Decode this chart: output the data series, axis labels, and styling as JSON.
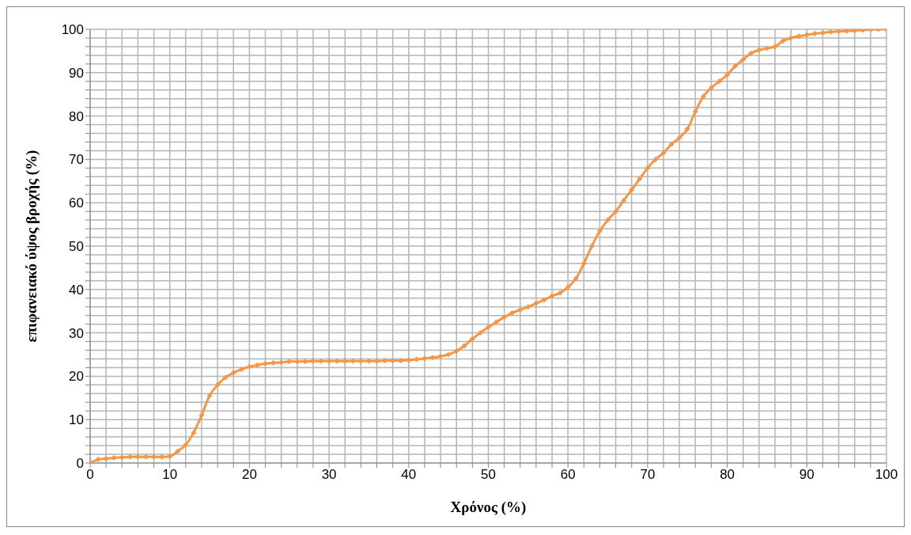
{
  "chart_data": {
    "type": "line",
    "xlabel": "Χρόνος (%)",
    "ylabel": "επιφανειακό ύψος βροχής (%)",
    "x": [
      0,
      1,
      2,
      3,
      4,
      5,
      6,
      7,
      8,
      9,
      10,
      11,
      12,
      13,
      14,
      15,
      16,
      17,
      18,
      19,
      20,
      21,
      22,
      23,
      24,
      25,
      26,
      27,
      28,
      29,
      30,
      31,
      32,
      33,
      34,
      35,
      36,
      37,
      38,
      39,
      40,
      41,
      42,
      43,
      44,
      45,
      46,
      47,
      48,
      49,
      50,
      51,
      52,
      53,
      54,
      55,
      56,
      57,
      58,
      59,
      60,
      61,
      62,
      63,
      64,
      65,
      66,
      67,
      68,
      69,
      70,
      71,
      72,
      73,
      74,
      75,
      76,
      77,
      78,
      79,
      80,
      81,
      82,
      83,
      84,
      85,
      86,
      87,
      88,
      89,
      90,
      91,
      92,
      93,
      94,
      95,
      96,
      97,
      98,
      99,
      100
    ],
    "series": [
      {
        "color": "#f79646",
        "values": [
          0,
          0.8,
          1,
          1.2,
          1.3,
          1.4,
          1.4,
          1.4,
          1.4,
          1.4,
          1.5,
          2.7,
          4.2,
          7,
          11,
          15.5,
          18,
          19.7,
          20.8,
          21.6,
          22.2,
          22.6,
          22.9,
          23.1,
          23.2,
          23.4,
          23.4,
          23.4,
          23.5,
          23.5,
          23.5,
          23.5,
          23.5,
          23.5,
          23.5,
          23.5,
          23.5,
          23.6,
          23.6,
          23.6,
          23.7,
          23.9,
          24.1,
          24.3,
          24.6,
          25,
          25.8,
          27,
          28.6,
          30,
          31.3,
          32.5,
          33.6,
          34.6,
          35.3,
          36,
          36.8,
          37.6,
          38.5,
          39.2,
          40.5,
          42.5,
          46,
          50,
          53.5,
          56,
          58,
          60.5,
          63,
          65.5,
          68,
          70,
          71.5,
          73.5,
          75,
          77,
          81,
          84.5,
          86.5,
          88,
          89.5,
          91.5,
          93,
          94.5,
          95.2,
          95.6,
          96,
          97.3,
          98,
          98.4,
          98.7,
          99,
          99.2,
          99.4,
          99.5,
          99.6,
          99.7,
          99.8,
          99.9,
          100,
          100
        ]
      }
    ],
    "xlim": [
      0,
      100
    ],
    "ylim": [
      0,
      100
    ],
    "xticks": [
      0,
      {
        "value": 2,
        "label": null
      },
      {
        "value": 4,
        "label": null
      },
      {
        "value": 6,
        "label": null
      },
      {
        "value": 8,
        "label": null
      },
      10,
      {
        "value": 12,
        "label": null
      },
      {
        "value": 14,
        "label": null
      },
      {
        "value": 16,
        "label": null
      },
      {
        "value": 18,
        "label": null
      },
      20,
      {
        "value": 22,
        "label": null
      },
      {
        "value": 24,
        "label": null
      },
      {
        "value": 26,
        "label": null
      },
      {
        "value": 28,
        "label": null
      },
      30,
      {
        "value": 32,
        "label": null
      },
      {
        "value": 34,
        "label": null
      },
      {
        "value": 36,
        "label": null
      },
      {
        "value": 38,
        "label": null
      },
      40,
      {
        "value": 42,
        "label": null
      },
      {
        "value": 44,
        "label": null
      },
      {
        "value": 46,
        "label": null
      },
      {
        "value": 48,
        "label": null
      },
      50,
      {
        "value": 52,
        "label": null
      },
      {
        "value": 54,
        "label": null
      },
      {
        "value": 56,
        "label": null
      },
      {
        "value": 58,
        "label": null
      },
      60,
      {
        "value": 62,
        "label": null
      },
      {
        "value": 64,
        "label": null
      },
      {
        "value": 66,
        "label": null
      },
      {
        "value": 68,
        "label": null
      },
      70,
      {
        "value": 72,
        "label": null
      },
      {
        "value": 74,
        "label": null
      },
      {
        "value": 76,
        "label": null
      },
      {
        "value": 78,
        "label": null
      },
      80,
      {
        "value": 82,
        "label": null
      },
      {
        "value": 84,
        "label": null
      },
      {
        "value": 86,
        "label": null
      },
      {
        "value": 88,
        "label": null
      },
      90,
      {
        "value": 92,
        "label": null
      },
      {
        "value": 94,
        "label": null
      },
      {
        "value": 96,
        "label": null
      },
      {
        "value": 98,
        "label": null
      },
      100
    ],
    "yticks": [
      0,
      {
        "value": 2,
        "label": null
      },
      {
        "value": 4,
        "label": null
      },
      {
        "value": 6,
        "label": null
      },
      {
        "value": 8,
        "label": null
      },
      10,
      {
        "value": 12,
        "label": null
      },
      {
        "value": 14,
        "label": null
      },
      {
        "value": 16,
        "label": null
      },
      {
        "value": 18,
        "label": null
      },
      20,
      {
        "value": 22,
        "label": null
      },
      {
        "value": 24,
        "label": null
      },
      {
        "value": 26,
        "label": null
      },
      {
        "value": 28,
        "label": null
      },
      30,
      {
        "value": 32,
        "label": null
      },
      {
        "value": 34,
        "label": null
      },
      {
        "value": 36,
        "label": null
      },
      {
        "value": 38,
        "label": null
      },
      40,
      {
        "value": 42,
        "label": null
      },
      {
        "value": 44,
        "label": null
      },
      {
        "value": 46,
        "label": null
      },
      {
        "value": 48,
        "label": null
      },
      50,
      {
        "value": 52,
        "label": null
      },
      {
        "value": 54,
        "label": null
      },
      {
        "value": 56,
        "label": null
      },
      {
        "value": 58,
        "label": null
      },
      60,
      {
        "value": 62,
        "label": null
      },
      {
        "value": 64,
        "label": null
      },
      {
        "value": 66,
        "label": null
      },
      {
        "value": 68,
        "label": null
      },
      70,
      {
        "value": 72,
        "label": null
      },
      {
        "value": 74,
        "label": null
      },
      {
        "value": 76,
        "label": null
      },
      {
        "value": 78,
        "label": null
      },
      80,
      {
        "value": 82,
        "label": null
      },
      {
        "value": 84,
        "label": null
      },
      {
        "value": 86,
        "label": null
      },
      {
        "value": 88,
        "label": null
      },
      90,
      {
        "value": 92,
        "label": null
      },
      {
        "value": 94,
        "label": null
      },
      {
        "value": 96,
        "label": null
      },
      {
        "value": 98,
        "label": null
      },
      100
    ],
    "grid": true,
    "marker": "diamond",
    "line_style": "solid",
    "legend": false
  }
}
